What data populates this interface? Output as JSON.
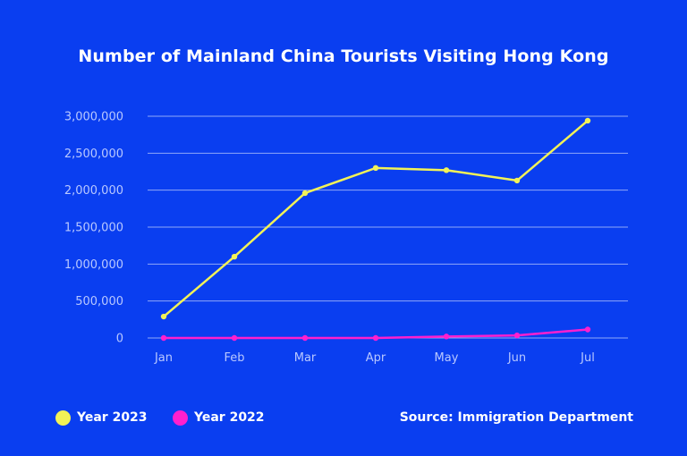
{
  "chart_data": {
    "type": "line",
    "title": "Number of Mainland China Tourists Visiting Hong Kong",
    "categories": [
      "Jan",
      "Feb",
      "Mar",
      "Apr",
      "May",
      "Jun",
      "Jul"
    ],
    "series": [
      {
        "name": "Year 2023",
        "color": "#F2F257",
        "values": [
          290000,
          1100000,
          1960000,
          2300000,
          2270000,
          2130000,
          2940000
        ]
      },
      {
        "name": "Year 2022",
        "color": "#FF1FCE",
        "values": [
          0,
          0,
          0,
          0,
          20000,
          35000,
          115000
        ]
      }
    ],
    "ylim": [
      0,
      3000000
    ],
    "yticks": [
      "0",
      "500,000",
      "1,000,000",
      "1,500,000",
      "2,000,000",
      "2,500,000",
      "3,000,000"
    ],
    "ytick_values": [
      0,
      500000,
      1000000,
      1500000,
      2000000,
      2500000,
      3000000
    ],
    "grid": true,
    "legend_position": "bottom-left",
    "source": "Source: Immigration Department"
  }
}
